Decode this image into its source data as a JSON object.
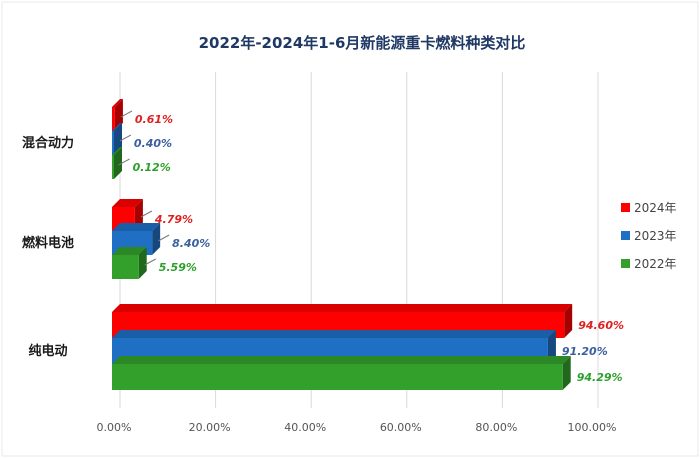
{
  "chart_data": {
    "type": "bar",
    "orientation": "horizontal",
    "title": "2022年-2024年1-6月新能源重卡燃料种类对比",
    "categories": [
      "混合动力",
      "燃料电池",
      "纯电动"
    ],
    "series": [
      {
        "name": "2024年",
        "color": "#ff0000",
        "values": [
          0.61,
          4.79,
          94.6
        ],
        "labels": [
          "0.61%",
          "4.79%",
          "94.60%"
        ],
        "label_color": "#e02020"
      },
      {
        "name": "2023年",
        "color": "#1f6fc4",
        "values": [
          0.4,
          8.4,
          91.2
        ],
        "labels": [
          "0.40%",
          "8.40%",
          "91.20%"
        ],
        "label_color": "#3a5f9e"
      },
      {
        "name": "2022年",
        "color": "#33a02c",
        "values": [
          0.12,
          5.59,
          94.29
        ],
        "labels": [
          "0.12%",
          "5.59%",
          "94.29%"
        ],
        "label_color": "#2ca02c"
      }
    ],
    "xlim": [
      0,
      100
    ],
    "xticks": [
      0,
      20,
      40,
      60,
      80,
      100
    ],
    "xtick_labels": [
      "0.00%",
      "20.00%",
      "40.00%",
      "60.00%",
      "80.00%",
      "100.00%"
    ],
    "grid": true,
    "legend": "right",
    "unit": "%"
  }
}
